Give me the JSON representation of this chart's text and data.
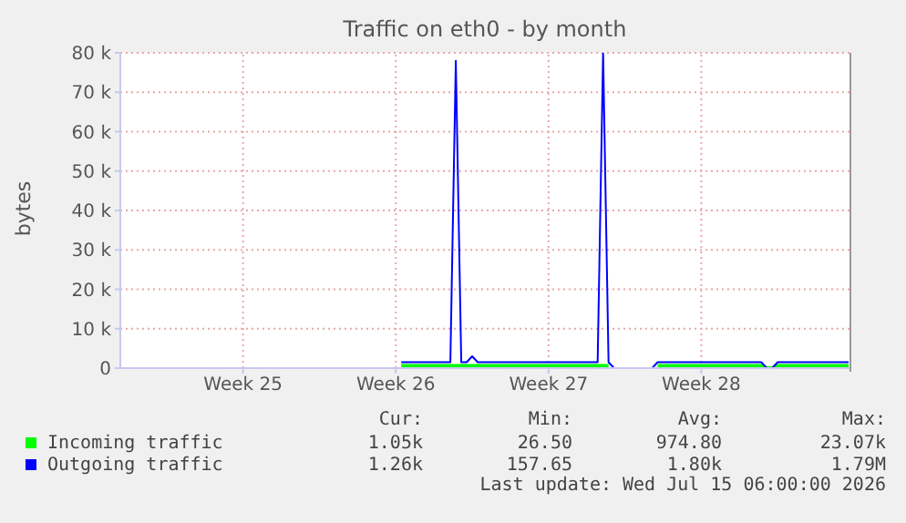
{
  "chart_data": {
    "type": "line",
    "title": "Traffic on eth0 - by month",
    "ylabel": "bytes",
    "categories": [
      null,
      null,
      null,
      null,
      null,
      null,
      null,
      null,
      null,
      null,
      null,
      null,
      null,
      null,
      null,
      null,
      null,
      null,
      null,
      null,
      null,
      null,
      "Week 25",
      null,
      null,
      null,
      null,
      null,
      null,
      null,
      null,
      null,
      null,
      null,
      null,
      null,
      null,
      null,
      null,
      null,
      null,
      null,
      null,
      null,
      null,
      null,
      null,
      null,
      null,
      null,
      "Week 26",
      null,
      null,
      null,
      null,
      null,
      null,
      null,
      null,
      null,
      null,
      null,
      null,
      null,
      null,
      null,
      null,
      null,
      null,
      null,
      null,
      null,
      null,
      null,
      null,
      null,
      null,
      null,
      "Week 27",
      null,
      null,
      null,
      null,
      null,
      null,
      null,
      null,
      null,
      null,
      null,
      null,
      null,
      null,
      null,
      null,
      null,
      null,
      null,
      null,
      null,
      null,
      null,
      null,
      null,
      null,
      null,
      "Week 28",
      null,
      null,
      null,
      null,
      null,
      null,
      null,
      null,
      null,
      null,
      null,
      null,
      null,
      null,
      null,
      null,
      null,
      null,
      null,
      null,
      null,
      null,
      null,
      null,
      null,
      null,
      null
    ],
    "ylim": [
      0,
      80000
    ],
    "yticks": [
      {
        "value": 0,
        "label": "0"
      },
      {
        "value": 10000,
        "label": "10 k"
      },
      {
        "value": 20000,
        "label": "20 k"
      },
      {
        "value": 30000,
        "label": "30 k"
      },
      {
        "value": 40000,
        "label": "40 k"
      },
      {
        "value": 50000,
        "label": "50 k"
      },
      {
        "value": 60000,
        "label": "60 k"
      },
      {
        "value": 70000,
        "label": "70 k"
      },
      {
        "value": 80000,
        "label": "80 k"
      }
    ],
    "grid": true,
    "legend": "bottom",
    "marker": "none",
    "line_style": "solid",
    "series": [
      {
        "name": "Incoming traffic",
        "color": "#00ff00",
        "values": [
          null,
          null,
          null,
          null,
          null,
          null,
          null,
          null,
          null,
          null,
          null,
          null,
          null,
          null,
          null,
          null,
          null,
          null,
          null,
          null,
          null,
          null,
          null,
          null,
          null,
          null,
          null,
          null,
          null,
          null,
          null,
          null,
          null,
          null,
          null,
          null,
          null,
          null,
          null,
          null,
          null,
          null,
          null,
          null,
          null,
          null,
          null,
          null,
          null,
          null,
          null,
          600,
          600,
          600,
          600,
          600,
          600,
          600,
          600,
          600,
          600,
          600,
          600,
          600,
          600,
          600,
          600,
          600,
          600,
          600,
          600,
          600,
          600,
          600,
          600,
          600,
          600,
          600,
          600,
          600,
          600,
          600,
          600,
          600,
          600,
          600,
          600,
          600,
          600,
          600,
          null,
          null,
          null,
          null,
          null,
          null,
          null,
          null,
          600,
          600,
          600,
          600,
          600,
          600,
          600,
          600,
          600,
          600,
          600,
          600,
          600,
          600,
          600,
          600,
          600,
          600,
          600,
          600,
          0,
          0,
          600,
          600,
          600,
          600,
          600,
          600,
          600,
          600,
          600,
          600,
          600,
          600,
          600,
          600
        ]
      },
      {
        "name": "Outgoing traffic",
        "color": "#0000ff",
        "values": [
          null,
          null,
          null,
          null,
          null,
          null,
          null,
          null,
          null,
          null,
          null,
          null,
          null,
          null,
          null,
          null,
          null,
          null,
          null,
          null,
          null,
          null,
          null,
          null,
          null,
          null,
          null,
          null,
          null,
          null,
          null,
          null,
          null,
          null,
          null,
          null,
          null,
          null,
          null,
          null,
          null,
          null,
          null,
          null,
          null,
          null,
          null,
          null,
          null,
          null,
          null,
          1500,
          1500,
          1500,
          1500,
          1500,
          1500,
          1500,
          1500,
          1500,
          1500,
          78000,
          1500,
          1500,
          3000,
          1500,
          1500,
          1500,
          1500,
          1500,
          1500,
          1500,
          1500,
          1500,
          1500,
          1500,
          1500,
          1500,
          1500,
          1500,
          1500,
          1500,
          1500,
          1500,
          1500,
          1500,
          1500,
          1500,
          80000,
          1500,
          0,
          0,
          0,
          0,
          0,
          0,
          0,
          0,
          1500,
          1500,
          1500,
          1500,
          1500,
          1500,
          1500,
          1500,
          1500,
          1500,
          1500,
          1500,
          1500,
          1500,
          1500,
          1500,
          1500,
          1500,
          1500,
          1500,
          0,
          0,
          1500,
          1500,
          1500,
          1500,
          1500,
          1500,
          1500,
          1500,
          1500,
          1500,
          1500,
          1500,
          1500,
          1500
        ]
      }
    ],
    "annotations": [
      "Cur:",
      "Min:",
      "Avg:",
      "Max:",
      "1.05k",
      "26.50",
      "974.80",
      "23.07k",
      "1.26k",
      "157.65",
      "1.80k",
      "1.79M",
      "Last update: Wed Jul 15 06:00:00 2026"
    ]
  }
}
